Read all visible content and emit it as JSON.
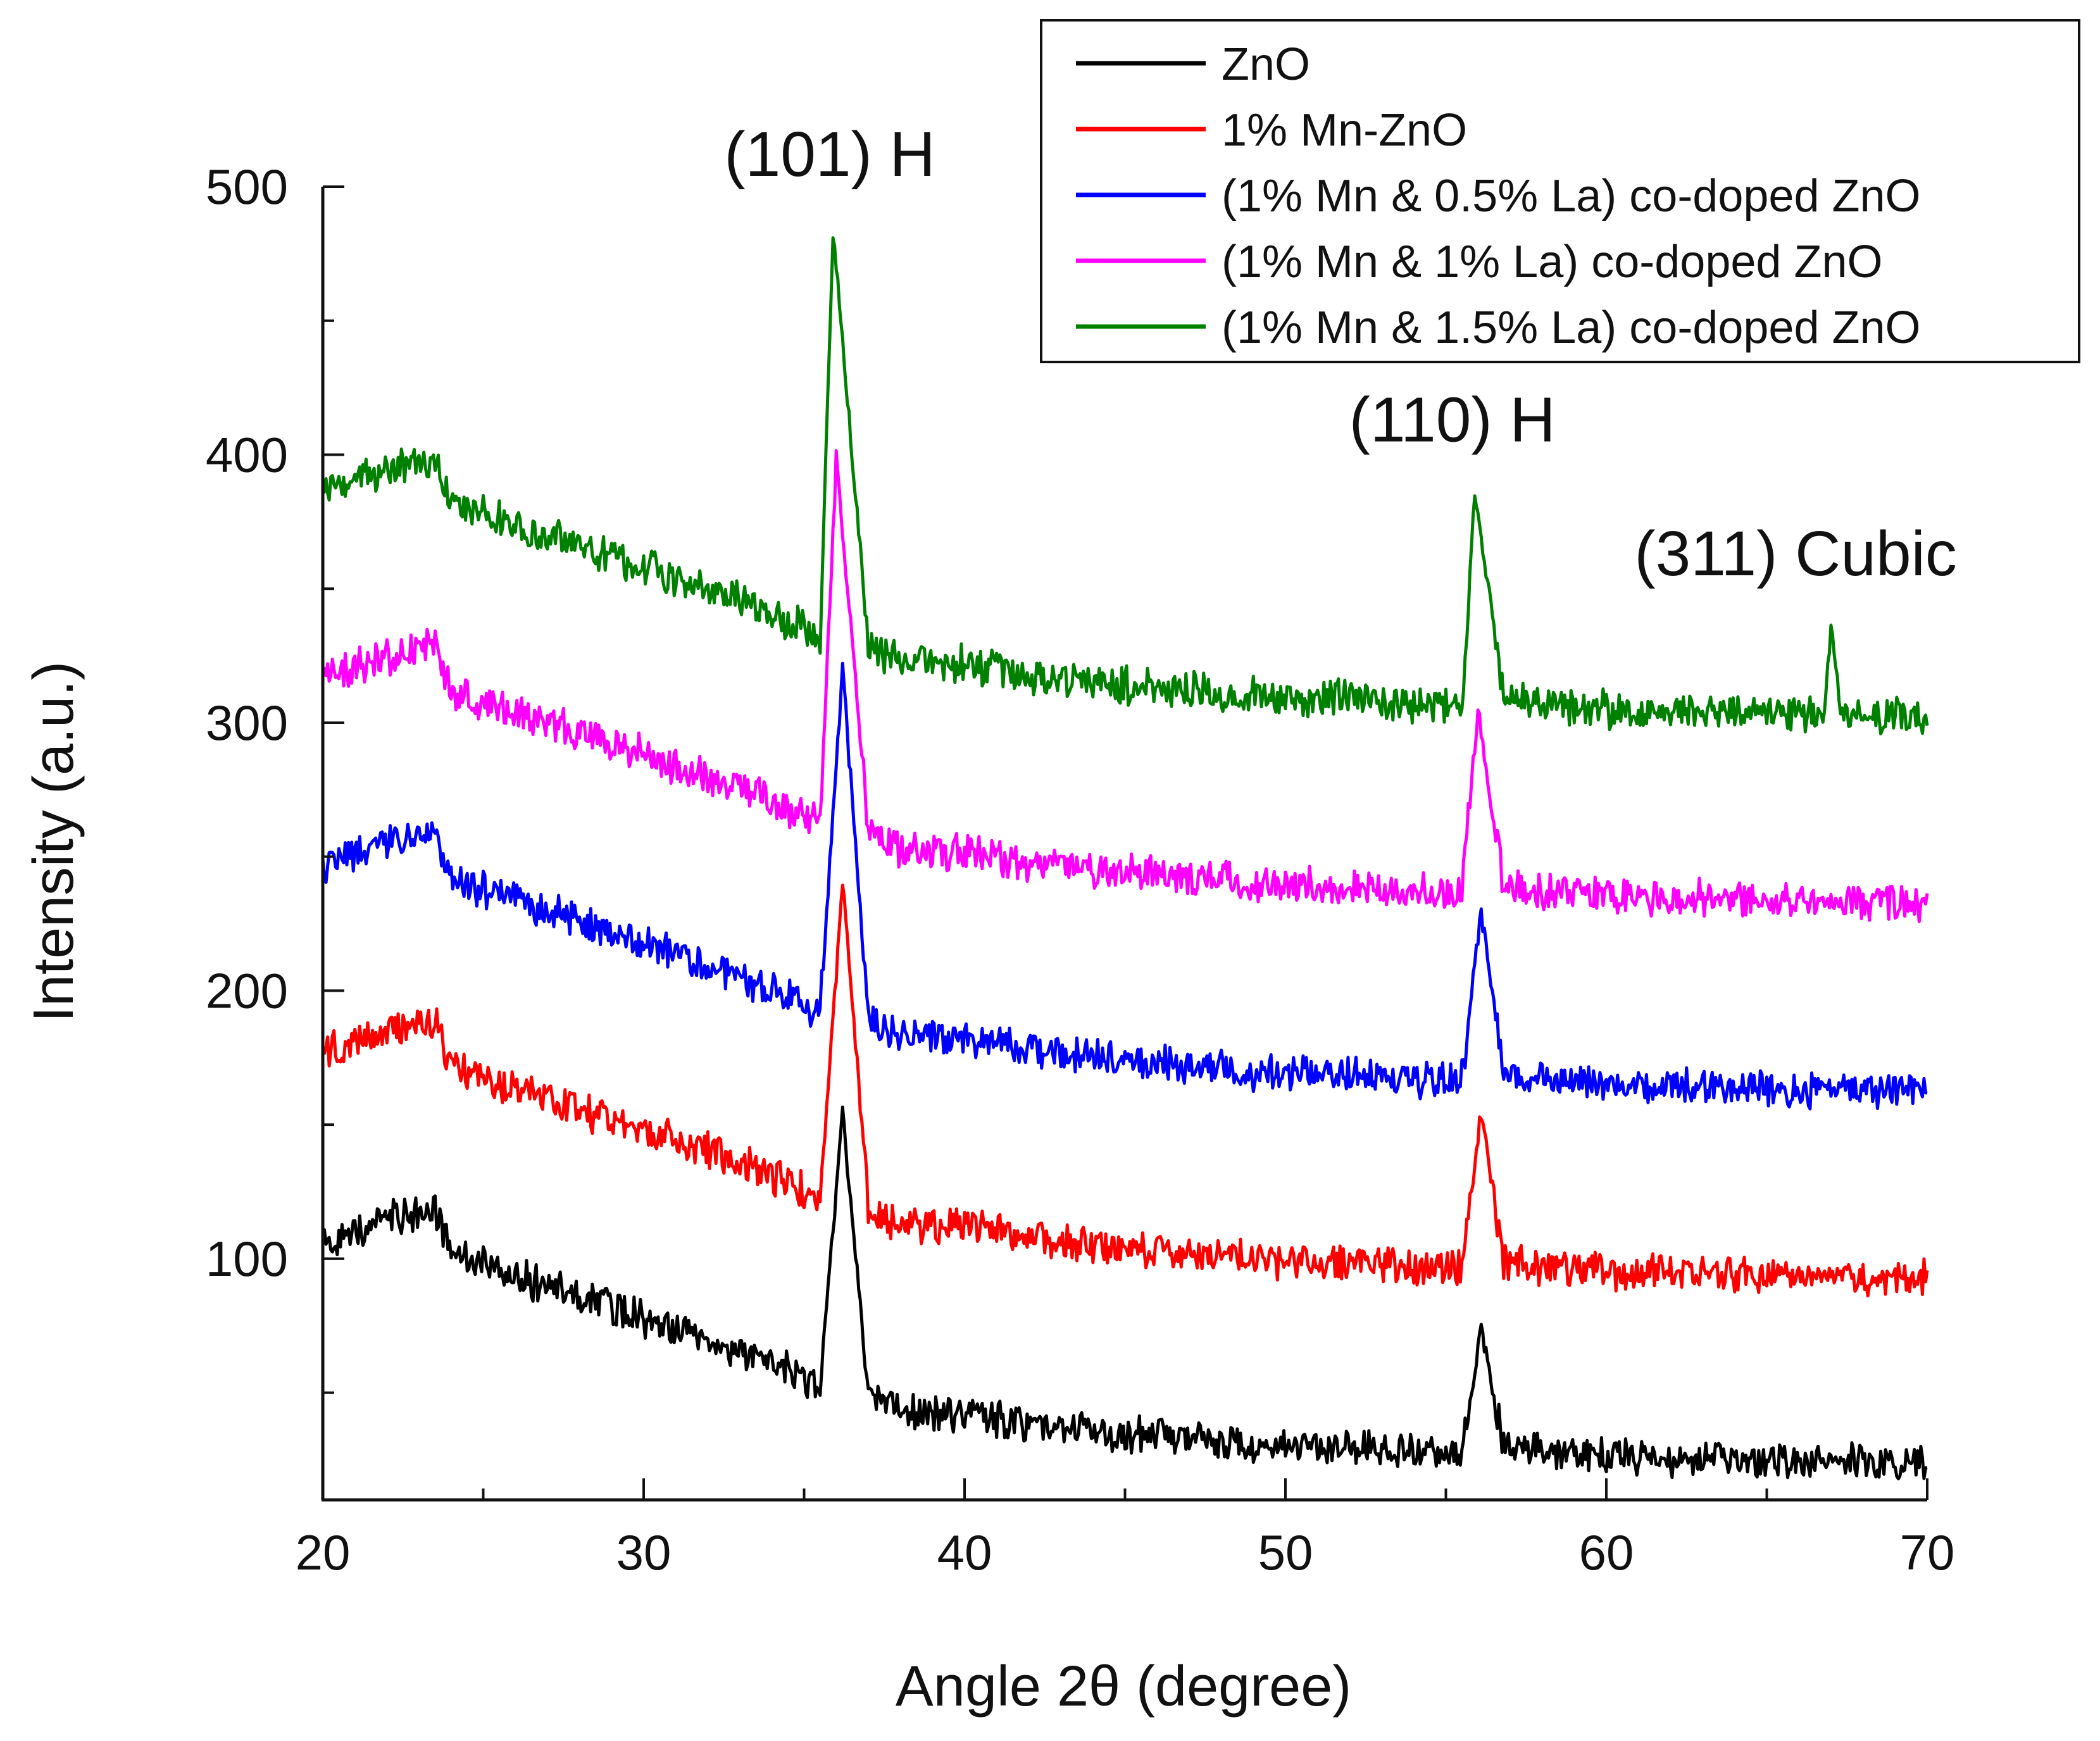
{
  "chart_data": {
    "type": "line",
    "title": "",
    "xlabel": "Angle 2θ (degree)",
    "ylabel": "Intensity (a.u.)",
    "xlim": [
      20,
      70
    ],
    "ylim": [
      10,
      500
    ],
    "xticks": [
      20,
      30,
      40,
      50,
      60,
      70
    ],
    "yticks": [
      100,
      200,
      300,
      400,
      500
    ],
    "x_minor_step": 5,
    "y_minor_step": 50,
    "grid": false,
    "legend_position": "top-right",
    "annotations": [
      {
        "text": "(101) H",
        "x": 35.8,
        "y": 504
      },
      {
        "text": "(110) H",
        "x": 55.2,
        "y": 405
      },
      {
        "text": "(311) Cubic",
        "x": 65.9,
        "y": 355
      }
    ],
    "peaks": [
      {
        "label": "(101) H",
        "x": 36.2,
        "width": 0.32
      },
      {
        "label": "(110) H",
        "x": 56.1,
        "width": 0.2
      },
      {
        "label": "(311) Cubic",
        "x": 67.0,
        "width": 0.18
      }
    ],
    "series": [
      {
        "name": "ZnO",
        "color": "#000000",
        "offset": 0,
        "noise_amplitude": 6,
        "x": [
          20,
          22,
          23.5,
          24,
          26,
          28,
          30,
          32,
          34,
          35.5,
          36.2,
          37,
          38,
          40,
          42,
          44,
          46,
          48,
          50,
          52,
          54,
          55.5,
          56.1,
          56.8,
          58,
          60,
          62,
          64,
          66,
          66.8,
          67.0,
          67.3,
          68,
          70
        ],
        "y": [
          106,
          115,
          118,
          102,
          93,
          86,
          78,
          70,
          61,
          52,
          154,
          52,
          42,
          42,
          38,
          36,
          34,
          32,
          30,
          30,
          28,
          28,
          74,
          30,
          28,
          26,
          26,
          25,
          24,
          24,
          24,
          24,
          24,
          24
        ]
      },
      {
        "name": "1% Mn-ZnO",
        "color": "#ff0000",
        "offset": 70,
        "noise_amplitude": 6,
        "x": [
          20,
          22,
          23.5,
          24,
          26,
          28,
          30,
          32,
          34,
          35.5,
          36.2,
          37,
          38,
          40,
          42,
          44,
          46,
          48,
          50,
          52,
          54,
          55.5,
          56.1,
          56.8,
          58,
          60,
          62,
          64,
          66,
          66.8,
          67.0,
          67.3,
          68,
          70
        ],
        "y": [
          176,
          185,
          188,
          172,
          163,
          156,
          148,
          140,
          131,
          122,
          240,
          120,
          112,
          112,
          108,
          105,
          103,
          101,
          99,
          99,
          97,
          97,
          155,
          99,
          97,
          95,
          95,
          94,
          93,
          93,
          93,
          93,
          93,
          93
        ]
      },
      {
        "name": "(1% Mn & 0.5% La) co-doped ZnO",
        "color": "#0000ff",
        "offset": 140,
        "noise_amplitude": 6,
        "x": [
          20,
          22,
          23.5,
          24,
          26,
          28,
          30,
          32,
          34,
          35.5,
          36.2,
          37,
          38,
          40,
          42,
          44,
          46,
          48,
          50,
          52,
          54,
          55.5,
          56.1,
          56.8,
          58,
          60,
          62,
          64,
          66,
          66.8,
          67.0,
          67.3,
          68,
          70
        ],
        "y": [
          246,
          255,
          258,
          242,
          233,
          226,
          218,
          210,
          201,
          192,
          320,
          190,
          182,
          182,
          178,
          175,
          173,
          171,
          169,
          169,
          167,
          167,
          230,
          169,
          167,
          165,
          165,
          164,
          163,
          163,
          163,
          163,
          163,
          163
        ]
      },
      {
        "name": "(1% Mn & 1% La) co-doped ZnO",
        "color": "#ff00ff",
        "offset": 210,
        "noise_amplitude": 6,
        "x": [
          20,
          22,
          23.5,
          24,
          26,
          28,
          30,
          32,
          34,
          35.5,
          36.0,
          37,
          38,
          40,
          42,
          44,
          46,
          48,
          50,
          52,
          54,
          55.5,
          56.0,
          56.8,
          58,
          60,
          62,
          64,
          66,
          66.8,
          67.0,
          67.3,
          68,
          70
        ],
        "y": [
          316,
          325,
          328,
          312,
          303,
          296,
          288,
          280,
          271,
          262,
          398,
          260,
          252,
          252,
          248,
          245,
          243,
          241,
          239,
          239,
          237,
          237,
          305,
          239,
          237,
          235,
          235,
          234,
          233,
          233,
          233,
          233,
          233,
          233
        ]
      },
      {
        "name": "(1% Mn & 1.5% La) co-doped ZnO",
        "color": "#008000",
        "offset": 280,
        "noise_amplitude": 6,
        "x": [
          20,
          22,
          23.5,
          24,
          26,
          28,
          30,
          32,
          34,
          35.5,
          35.9,
          37,
          38,
          40,
          42,
          44,
          46,
          48,
          50,
          52,
          54,
          55.5,
          55.9,
          56.8,
          58,
          60,
          62,
          64,
          66,
          66.8,
          67.0,
          67.3,
          68,
          70
        ],
        "y": [
          386,
          395,
          398,
          382,
          373,
          366,
          358,
          350,
          341,
          332,
          484,
          330,
          322,
          322,
          318,
          315,
          313,
          311,
          309,
          309,
          307,
          307,
          385,
          309,
          307,
          305,
          305,
          304,
          303,
          303,
          336,
          303,
          303,
          303
        ]
      }
    ]
  }
}
